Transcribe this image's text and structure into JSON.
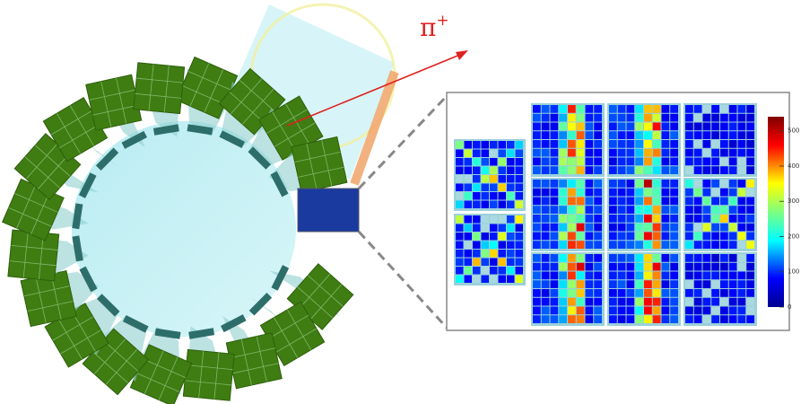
{
  "particle": {
    "symbol": "π",
    "charge": "+"
  },
  "colorbar": {
    "lim": [
      0,
      540
    ],
    "ticks": [
      0,
      100,
      200,
      300,
      400,
      500
    ]
  }
}
